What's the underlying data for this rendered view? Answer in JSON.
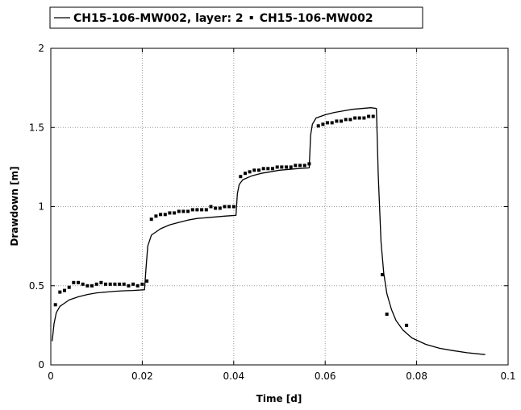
{
  "chart_data": {
    "type": "line",
    "title": "",
    "xlabel": "Time [d]",
    "ylabel": "Drawdown [m]",
    "xlim": [
      0,
      0.1
    ],
    "ylim": [
      0,
      2
    ],
    "xticks": [
      0,
      0.02,
      0.04,
      0.06,
      0.08,
      0.1
    ],
    "yticks": [
      0,
      0.5,
      1,
      1.5,
      2
    ],
    "xtick_labels": [
      "0",
      "0.02",
      "0.04",
      "0.06",
      "0.08",
      "0.1"
    ],
    "ytick_labels": [
      "0",
      "0.5",
      "1",
      "1.5",
      "2"
    ],
    "grid": true,
    "legend_position": "top",
    "series": [
      {
        "name": "CH15-106-MW002, layer: 2",
        "style": "line",
        "color": "#000000",
        "x": [
          0.0003,
          0.0007,
          0.0012,
          0.002,
          0.003,
          0.004,
          0.006,
          0.008,
          0.01,
          0.012,
          0.014,
          0.016,
          0.018,
          0.0205,
          0.0208,
          0.0212,
          0.022,
          0.024,
          0.026,
          0.028,
          0.03,
          0.032,
          0.034,
          0.036,
          0.038,
          0.0405,
          0.0408,
          0.0412,
          0.042,
          0.044,
          0.046,
          0.048,
          0.05,
          0.052,
          0.054,
          0.0565,
          0.0568,
          0.0572,
          0.058,
          0.06,
          0.062,
          0.064,
          0.066,
          0.068,
          0.07,
          0.0712,
          0.0716,
          0.0722,
          0.0728,
          0.0735,
          0.0745,
          0.0755,
          0.077,
          0.079,
          0.082,
          0.085,
          0.088,
          0.091,
          0.095
        ],
        "y": [
          0.15,
          0.26,
          0.33,
          0.37,
          0.39,
          0.41,
          0.43,
          0.445,
          0.455,
          0.46,
          0.465,
          0.468,
          0.47,
          0.475,
          0.6,
          0.75,
          0.82,
          0.86,
          0.885,
          0.9,
          0.915,
          0.925,
          0.93,
          0.935,
          0.94,
          0.945,
          1.08,
          1.14,
          1.17,
          1.195,
          1.21,
          1.22,
          1.23,
          1.235,
          1.24,
          1.245,
          1.45,
          1.52,
          1.56,
          1.58,
          1.595,
          1.605,
          1.615,
          1.62,
          1.625,
          1.62,
          1.2,
          0.78,
          0.58,
          0.45,
          0.35,
          0.28,
          0.22,
          0.17,
          0.13,
          0.105,
          0.09,
          0.077,
          0.065
        ]
      },
      {
        "name": "CH15-106-MW002",
        "style": "markers",
        "color": "#000000",
        "x": [
          0.001,
          0.002,
          0.003,
          0.004,
          0.005,
          0.006,
          0.007,
          0.008,
          0.009,
          0.01,
          0.011,
          0.012,
          0.013,
          0.014,
          0.015,
          0.016,
          0.017,
          0.018,
          0.019,
          0.02,
          0.021,
          0.022,
          0.023,
          0.024,
          0.025,
          0.026,
          0.027,
          0.028,
          0.029,
          0.03,
          0.031,
          0.032,
          0.033,
          0.034,
          0.035,
          0.036,
          0.037,
          0.038,
          0.039,
          0.04,
          0.0415,
          0.0425,
          0.0435,
          0.0445,
          0.0455,
          0.0465,
          0.0475,
          0.0485,
          0.0495,
          0.0505,
          0.0515,
          0.0525,
          0.0535,
          0.0545,
          0.0555,
          0.0565,
          0.0585,
          0.0595,
          0.0605,
          0.0615,
          0.0625,
          0.0635,
          0.0645,
          0.0655,
          0.0665,
          0.0675,
          0.0685,
          0.0695,
          0.0705,
          0.0725,
          0.0735,
          0.0778
        ],
        "y": [
          0.38,
          0.46,
          0.47,
          0.49,
          0.52,
          0.52,
          0.51,
          0.5,
          0.5,
          0.51,
          0.52,
          0.51,
          0.51,
          0.51,
          0.51,
          0.51,
          0.5,
          0.51,
          0.5,
          0.51,
          0.53,
          0.92,
          0.94,
          0.95,
          0.95,
          0.96,
          0.96,
          0.97,
          0.97,
          0.97,
          0.98,
          0.98,
          0.98,
          0.98,
          1.0,
          0.99,
          0.99,
          1.0,
          1.0,
          1.0,
          1.19,
          1.21,
          1.22,
          1.23,
          1.23,
          1.24,
          1.24,
          1.24,
          1.25,
          1.25,
          1.25,
          1.25,
          1.26,
          1.26,
          1.26,
          1.27,
          1.51,
          1.52,
          1.53,
          1.53,
          1.54,
          1.54,
          1.55,
          1.55,
          1.56,
          1.56,
          1.56,
          1.57,
          1.57,
          0.57,
          0.32,
          0.25
        ]
      }
    ]
  }
}
